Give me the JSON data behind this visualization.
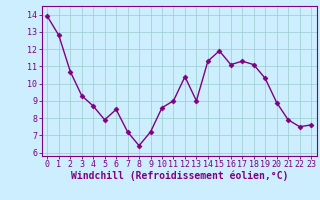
{
  "x": [
    0,
    1,
    2,
    3,
    4,
    5,
    6,
    7,
    8,
    9,
    10,
    11,
    12,
    13,
    14,
    15,
    16,
    17,
    18,
    19,
    20,
    21,
    22,
    23
  ],
  "y": [
    13.9,
    12.8,
    10.7,
    9.3,
    8.7,
    7.9,
    8.5,
    7.2,
    6.4,
    7.2,
    8.6,
    9.0,
    10.4,
    9.0,
    11.3,
    11.9,
    11.1,
    11.3,
    11.1,
    10.3,
    8.9,
    7.9,
    7.5,
    7.6
  ],
  "line_color": "#800080",
  "marker": "D",
  "marker_size": 2.5,
  "bg_color": "#cceeff",
  "grid_color": "#99cccc",
  "xlim": [
    -0.5,
    23.5
  ],
  "ylim": [
    5.8,
    14.5
  ],
  "yticks": [
    6,
    7,
    8,
    9,
    10,
    11,
    12,
    13,
    14
  ],
  "xticks": [
    0,
    1,
    2,
    3,
    4,
    5,
    6,
    7,
    8,
    9,
    10,
    11,
    12,
    13,
    14,
    15,
    16,
    17,
    18,
    19,
    20,
    21,
    22,
    23
  ],
  "xlabel": "Windchill (Refroidissement éolien,°C)",
  "xlabel_fontsize": 7,
  "tick_fontsize": 6,
  "axis_color": "#800080",
  "spine_color": "#800080",
  "line_width": 1.0
}
